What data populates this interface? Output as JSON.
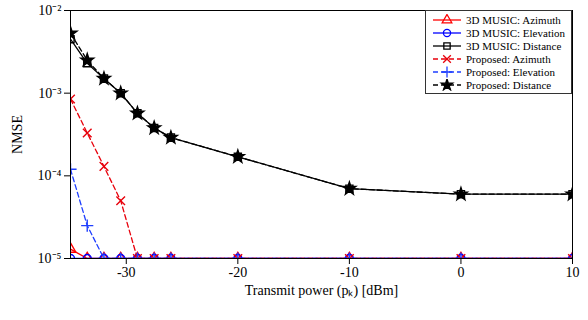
{
  "chart_data": {
    "type": "line",
    "x_label": "Transmit power (pₖ) [dBm]",
    "y_label": "NMSE",
    "log": "y",
    "grid": false,
    "legend": "upper right",
    "x": [
      -35,
      -33.5,
      -32,
      -30.5,
      -29,
      -27.5,
      -26,
      -20,
      -10,
      0,
      10
    ],
    "xlim": [
      -35,
      10
    ],
    "xticks": [
      -30,
      -20,
      -10,
      0,
      10
    ],
    "ylim": [
      1e-05,
      0.01
    ],
    "yticks": [
      {
        "value": 1e-05,
        "label": "10⁻⁵"
      },
      {
        "value": 0.0001,
        "label": "10⁻⁴"
      },
      {
        "value": 0.001,
        "label": "10⁻³"
      },
      {
        "value": 0.01,
        "label": "10⁻²"
      }
    ],
    "series": [
      {
        "name": "3D MUSIC: Azimuth",
        "color": "#ff0000",
        "marker": "triangle",
        "line_style": "solid",
        "values": [
          1.3e-05,
          1e-05,
          1e-05,
          1e-05,
          1e-05,
          1e-05,
          1e-05,
          1e-05,
          1e-05,
          1e-05,
          1e-05
        ]
      },
      {
        "name": "3D MUSIC: Elevation",
        "color": "#0000ff",
        "marker": "circle",
        "line_style": "solid",
        "values": [
          1e-05,
          1e-05,
          1e-05,
          1e-05,
          1e-05,
          1e-05,
          1e-05,
          1e-05,
          1e-05,
          1e-05,
          1e-05
        ]
      },
      {
        "name": "3D MUSIC: Distance",
        "color": "#000000",
        "marker": "square",
        "line_style": "solid",
        "values": [
          0.0045,
          0.0023,
          0.0015,
          0.001,
          0.00057,
          0.00038,
          0.00029,
          0.00017,
          7e-05,
          6e-05,
          6e-05
        ]
      },
      {
        "name": "Proposed: Azimuth",
        "color": "#e8000b",
        "marker": "times",
        "line_style": "dashed",
        "values": [
          0.00085,
          0.00033,
          0.00013,
          5e-05,
          1e-05,
          1e-05,
          1e-05,
          1e-05,
          1e-05,
          1e-05,
          1e-05
        ]
      },
      {
        "name": "Proposed: Elevation",
        "color": "#1f3fff",
        "marker": "plus",
        "line_style": "dashed",
        "values": [
          0.00012,
          2.5e-05,
          1e-05,
          1e-05,
          1e-05,
          1e-05,
          1e-05,
          1e-05,
          1e-05,
          1e-05,
          1e-05
        ]
      },
      {
        "name": "Proposed: Distance",
        "color": "#000000",
        "marker": "star",
        "line_style": "dashed",
        "values": [
          0.0053,
          0.0025,
          0.0015,
          0.001,
          0.00057,
          0.00038,
          0.00029,
          0.00017,
          7e-05,
          6e-05,
          6e-05
        ]
      }
    ]
  }
}
